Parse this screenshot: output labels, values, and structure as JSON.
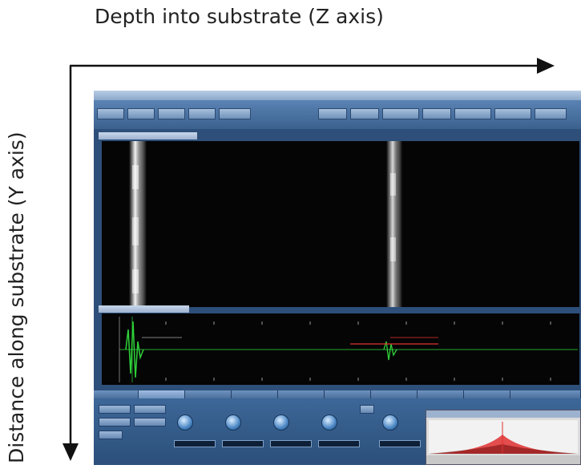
{
  "figure": {
    "z_axis_label": "Depth into substrate (Z axis)",
    "y_axis_label": "Distance along substrate (Y axis)"
  },
  "colors": {
    "axis_arrow": "#111111",
    "app_frame": "#2d4f79",
    "scan_background": "#050505",
    "ascan_trace": "#2fd23a",
    "gate_marker": "#e03030"
  },
  "icons": [
    "arrow-right-icon",
    "arrow-down-icon",
    "knob-icon"
  ]
}
